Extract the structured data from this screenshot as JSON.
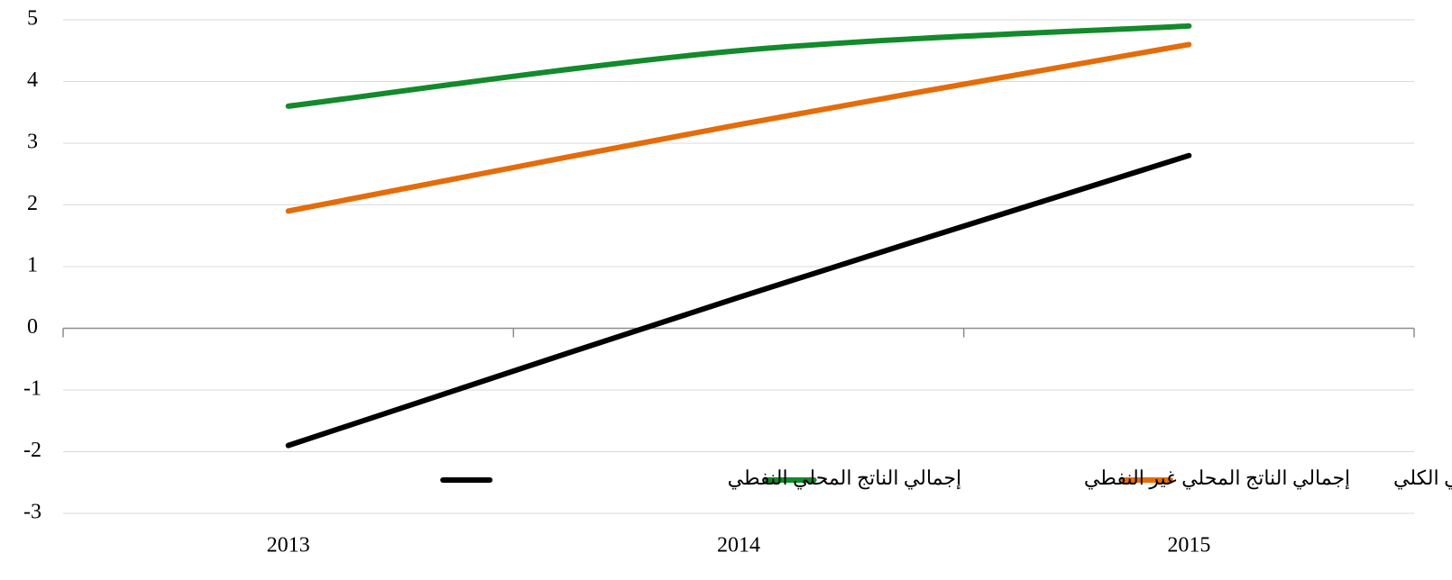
{
  "chart_data": {
    "type": "line",
    "categories": [
      "2013",
      "2014",
      "2015"
    ],
    "series": [
      {
        "name": "إجمالي الناتج المحلي الكلي",
        "color": "#e46c0a",
        "values": [
          1.9,
          3.3,
          4.6
        ]
      },
      {
        "name": "إجمالي الناتج المحلي غير النفطي",
        "color": "#138a2b",
        "values": [
          3.6,
          4.5,
          4.9
        ]
      },
      {
        "name": "إجمالي الناتج المحلي النفطي",
        "color": "#000000",
        "values": [
          -1.9,
          0.5,
          2.8
        ]
      }
    ],
    "ylim": [
      -3,
      5
    ],
    "yticks": [
      -3,
      -2,
      -1,
      0,
      1,
      2,
      3,
      4,
      5
    ],
    "grid": true,
    "legend": "bottom"
  }
}
